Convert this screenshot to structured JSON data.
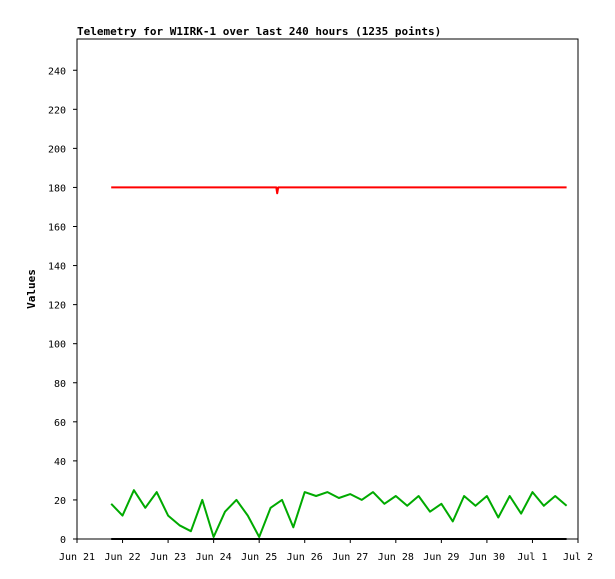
{
  "chart_data": {
    "type": "line",
    "title": "Telemetry for W1IRK-1 over last 240 hours (1235 points)",
    "xlabel": "",
    "ylabel": "Values",
    "x_ticks": [
      "Jun 21",
      "Jun 22",
      "Jun 23",
      "Jun 24",
      "Jun 25",
      "Jun 26",
      "Jun 27",
      "Jun 28",
      "Jun 29",
      "Jun 30",
      "Jul 1",
      "Jul 2"
    ],
    "y_ticks": [
      "0",
      "20",
      "40",
      "60",
      "80",
      "100",
      "120",
      "140",
      "160",
      "180",
      "200",
      "220",
      "240"
    ],
    "ylim": [
      0,
      256
    ],
    "grid": false,
    "x_axis": "date",
    "series": [
      {
        "color": "#ff0000",
        "x": [
          "Jun 21 18:00",
          "Jun 25 09:00",
          "Jun 25 09:30",
          "Jun 25 10:00",
          "Jul 1 18:00"
        ],
        "values": [
          180,
          180,
          177,
          180,
          180
        ]
      },
      {
        "color": "#00aa00",
        "x": [
          "Jun 21 18:00",
          "Jun 22 00:00",
          "Jun 22 06:00",
          "Jun 22 12:00",
          "Jun 22 18:00",
          "Jun 23 00:00",
          "Jun 23 06:00",
          "Jun 23 12:00",
          "Jun 23 18:00",
          "Jun 24 00:00",
          "Jun 24 06:00",
          "Jun 24 12:00",
          "Jun 24 18:00",
          "Jun 25 00:00",
          "Jun 25 06:00",
          "Jun 25 12:00",
          "Jun 25 18:00",
          "Jun 26 00:00",
          "Jun 26 06:00",
          "Jun 26 12:00",
          "Jun 26 18:00",
          "Jun 27 00:00",
          "Jun 27 06:00",
          "Jun 27 12:00",
          "Jun 27 18:00",
          "Jun 28 00:00",
          "Jun 28 06:00",
          "Jun 28 12:00",
          "Jun 28 18:00",
          "Jun 29 00:00",
          "Jun 29 06:00",
          "Jun 29 12:00",
          "Jun 29 18:00",
          "Jun 30 00:00",
          "Jun 30 06:00",
          "Jun 30 12:00",
          "Jun 30 18:00",
          "Jul 1 00:00",
          "Jul 1 06:00",
          "Jul 1 12:00",
          "Jul 1 18:00"
        ],
        "values": [
          18,
          12,
          25,
          16,
          24,
          12,
          7,
          4,
          20,
          1,
          14,
          20,
          12,
          1,
          16,
          20,
          6,
          24,
          22,
          24,
          21,
          23,
          20,
          24,
          18,
          22,
          17,
          22,
          14,
          18,
          9,
          22,
          17,
          22,
          11,
          22,
          13,
          24,
          17,
          22,
          17
        ]
      },
      {
        "color": "#000000",
        "x": [
          "Jun 21 18:00",
          "Jul 1 18:00"
        ],
        "values": [
          0,
          0
        ]
      }
    ]
  }
}
